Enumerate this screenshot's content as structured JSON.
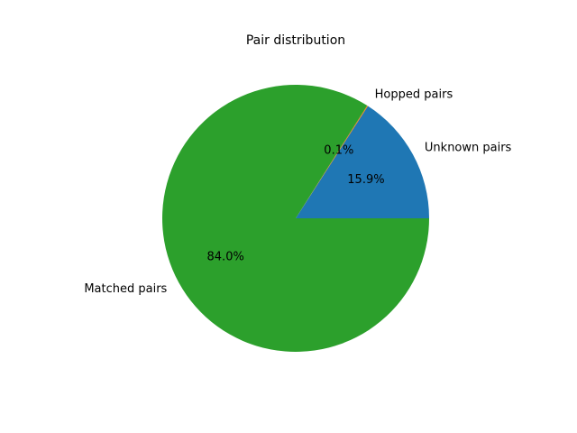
{
  "chart_data": {
    "type": "pie",
    "title": "Pair distribution",
    "start_angle_deg": 0,
    "direction": "counterclockwise",
    "slices": [
      {
        "label": "Unknown pairs",
        "value": 15.9,
        "pct_text": "15.9%",
        "color": "#1f77b4"
      },
      {
        "label": "Hopped pairs",
        "value": 0.1,
        "pct_text": "0.1%",
        "color": "#ff7f0e"
      },
      {
        "label": "Matched pairs",
        "value": 84.0,
        "pct_text": "84.0%",
        "color": "#2ca02c"
      }
    ]
  }
}
